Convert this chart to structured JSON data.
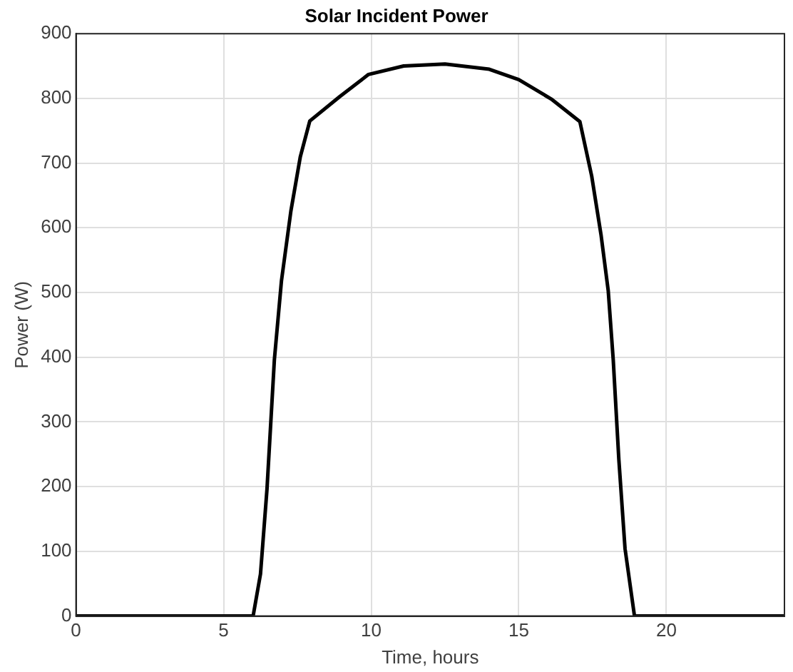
{
  "chart_data": {
    "type": "line",
    "title": "Solar Incident Power",
    "xlabel": "Time, hours",
    "ylabel": "Power (W)",
    "xlim": [
      0,
      24
    ],
    "xticks": [
      0,
      5,
      10,
      15,
      20
    ],
    "ylim": [
      0,
      900
    ],
    "yticks": [
      0,
      100,
      200,
      300,
      400,
      500,
      600,
      700,
      800,
      900
    ],
    "grid": true,
    "marker": "none",
    "line_style": "solid",
    "series": [
      {
        "color": "#000000",
        "x": [
          0,
          6.0,
          6.25,
          6.47,
          6.72,
          6.96,
          7.28,
          7.6,
          7.92,
          8.94,
          9.91,
          11.1,
          12.5,
          14.0,
          15.0,
          16.1,
          17.07,
          17.47,
          17.79,
          18.03,
          18.2,
          18.39,
          18.6,
          18.92,
          24
        ],
        "values": [
          0,
          0,
          65,
          196,
          396,
          518,
          626,
          710,
          765,
          803,
          837,
          850,
          853,
          845,
          829,
          799,
          764,
          680,
          588,
          503,
          396,
          242,
          104,
          0,
          0
        ]
      }
    ]
  }
}
